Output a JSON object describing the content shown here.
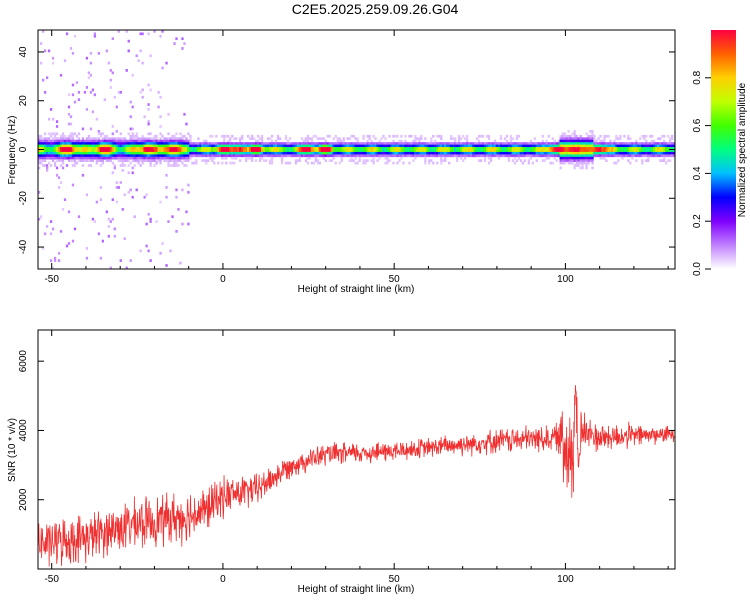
{
  "title": "C2E5.2025.259.09.26.G04",
  "colors": {
    "snr_line": "#f03030",
    "frame": "#000000"
  },
  "chart_data": [
    {
      "type": "heatmap",
      "xlabel": "Height of straight line (km)",
      "ylabel": "Frequency (Hz)",
      "xlim": [
        -54,
        132
      ],
      "ylim": [
        -49,
        49
      ],
      "x_ticks": [
        -50,
        0,
        50,
        100
      ],
      "y_ticks": [
        -40,
        -20,
        0,
        20,
        40
      ],
      "colorbar": {
        "label": "Normalized spectral amplitude",
        "range": [
          0.0,
          1.0
        ],
        "ticks": [
          "0.0",
          "0.2",
          "0.4",
          "0.6",
          "0.8"
        ],
        "colormap": [
          "#ffffff",
          "#c080ff",
          "#8000ff",
          "#0000ff",
          "#00c0ff",
          "#00ff80",
          "#40ff00",
          "#c0ff00",
          "#ffd000",
          "#ff6000",
          "#ff0040"
        ]
      },
      "band_center_hz": 0,
      "band_halfwidth_hz": [
        2,
        6
      ],
      "peak_amplitude_heights_km": [
        -45,
        -35,
        -22,
        -15,
        0,
        5,
        10,
        25,
        30,
        97,
        103,
        110
      ]
    },
    {
      "type": "line",
      "xlabel": "Height of straight line (km)",
      "ylabel": "SNR (10 * v/v)",
      "xlim": [
        -54,
        132
      ],
      "ylim": [
        0,
        6900
      ],
      "x_ticks": [
        -50,
        0,
        50,
        100
      ],
      "y_ticks": [
        2000,
        4000,
        6000
      ],
      "series": [
        {
          "trend": {
            "x": [
              -54,
              -40,
              -30,
              -20,
              -12,
              -5,
              0,
              10,
              20,
              30,
              40,
              50,
              60,
              70,
              80,
              90,
              98,
              100,
              101,
              102,
              103,
              104,
              105,
              106,
              110,
              120,
              132
            ],
            "y": [
              700,
              900,
              1200,
              1400,
              1500,
              1700,
              2100,
              2300,
              3000,
              3300,
              3350,
              3400,
              3500,
              3600,
              3700,
              3750,
              3800,
              3500,
              4000,
              3000,
              5200,
              2800,
              4200,
              3900,
              3800,
              3850,
              3900
            ]
          },
          "noise_amplitude": [
            {
              "x": -54,
              "amp": 800
            },
            {
              "x": -10,
              "amp": 900
            },
            {
              "x": 0,
              "amp": 700
            },
            {
              "x": 20,
              "amp": 400
            },
            {
              "x": 60,
              "amp": 350
            },
            {
              "x": 98,
              "amp": 500
            },
            {
              "x": 100,
              "amp": 2500
            },
            {
              "x": 106,
              "amp": 600
            },
            {
              "x": 132,
              "amp": 250
            }
          ]
        }
      ]
    }
  ]
}
